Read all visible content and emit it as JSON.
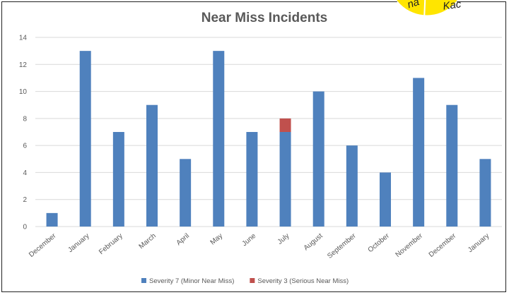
{
  "sticker": {
    "left_text": "na",
    "right_text": "Kac",
    "color": "#FFE500"
  },
  "chart_data": {
    "type": "bar",
    "stacked": true,
    "title": "Near Miss Incidents",
    "categories": [
      "December",
      "January",
      "February",
      "March",
      "April",
      "May",
      "June",
      "July",
      "August",
      "September",
      "October",
      "November",
      "December",
      "January"
    ],
    "series": [
      {
        "name": "Severity 7 (Minor Near Miss)",
        "color": "#4F81BD",
        "values": [
          1,
          13,
          7,
          9,
          5,
          13,
          7,
          7,
          10,
          6,
          4,
          11,
          9,
          5
        ]
      },
      {
        "name": "Severity 3 (Serious Near Miss)",
        "color": "#C0504D",
        "values": [
          0,
          0,
          0,
          0,
          0,
          0,
          0,
          1,
          0,
          0,
          0,
          0,
          0,
          0
        ]
      }
    ],
    "ylim": [
      0,
      14
    ],
    "yticks": [
      0,
      2,
      4,
      6,
      8,
      10,
      12,
      14
    ],
    "grid": true,
    "legend": "bottom"
  }
}
